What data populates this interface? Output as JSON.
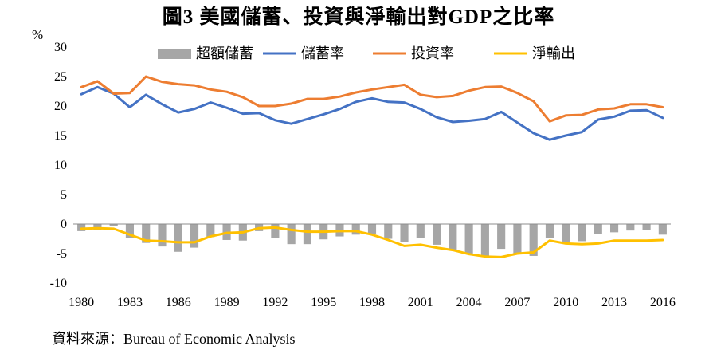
{
  "title": "圖3  美國儲蓄、投資與淨輸出對GDP之比率",
  "unit": "%",
  "source": "資料來源：Bureau of Economic Analysis",
  "chart_data": {
    "type": "bar",
    "title": "圖3  美國儲蓄、投資與淨輸出對GDP之比率",
    "ylabel": "%",
    "ylim": [
      -10,
      30
    ],
    "yticks": [
      30,
      25,
      20,
      15,
      10,
      5,
      0,
      -5,
      -10
    ],
    "xticks": [
      "1980",
      "1983",
      "1986",
      "1989",
      "1992",
      "1995",
      "1998",
      "2001",
      "2004",
      "2007",
      "2010",
      "2013",
      "2016"
    ],
    "x": [
      1980,
      1981,
      1982,
      1983,
      1984,
      1985,
      1986,
      1987,
      1988,
      1989,
      1990,
      1991,
      1992,
      1993,
      1994,
      1995,
      1996,
      1997,
      1998,
      1999,
      2000,
      2001,
      2002,
      2003,
      2004,
      2005,
      2006,
      2007,
      2008,
      2009,
      2010,
      2011,
      2012,
      2013,
      2014,
      2015,
      2016
    ],
    "legend_position": "top",
    "grid": false,
    "series": [
      {
        "name": "超額儲蓄",
        "kind": "bar",
        "color": "#a6a6a6",
        "values": [
          -1.2,
          -1.0,
          -0.3,
          -2.4,
          -3.2,
          -3.8,
          -4.7,
          -4.0,
          -2.2,
          -2.7,
          -2.8,
          -1.2,
          -2.4,
          -3.4,
          -3.4,
          -2.6,
          -2.1,
          -1.8,
          -1.7,
          -2.5,
          -3.0,
          -2.4,
          -3.5,
          -4.4,
          -5.1,
          -5.4,
          -4.2,
          -5.0,
          -5.4,
          -2.3,
          -3.3,
          -2.9,
          -1.7,
          -1.4,
          -1.1,
          -1.0,
          -1.8
        ]
      },
      {
        "name": "儲蓄率",
        "kind": "line",
        "color": "#4472c4",
        "values": [
          22.0,
          23.2,
          22.1,
          19.8,
          21.9,
          20.3,
          18.9,
          19.5,
          20.6,
          19.7,
          18.7,
          18.8,
          17.6,
          17.0,
          17.8,
          18.6,
          19.5,
          20.7,
          21.3,
          20.7,
          20.6,
          19.5,
          18.1,
          17.3,
          17.5,
          17.8,
          19.0,
          17.2,
          15.4,
          14.3,
          15.0,
          15.6,
          17.7,
          18.2,
          19.2,
          19.3,
          18.0
        ]
      },
      {
        "name": "投資率",
        "kind": "line",
        "color": "#ed7d31",
        "values": [
          23.2,
          24.2,
          22.1,
          22.2,
          25.0,
          24.1,
          23.7,
          23.5,
          22.8,
          22.4,
          21.5,
          20.0,
          20.0,
          20.4,
          21.2,
          21.2,
          21.6,
          22.3,
          22.8,
          23.2,
          23.6,
          21.9,
          21.5,
          21.7,
          22.6,
          23.2,
          23.3,
          22.2,
          20.8,
          17.4,
          18.4,
          18.5,
          19.4,
          19.6,
          20.3,
          20.3,
          19.8
        ]
      },
      {
        "name": "淨輸出",
        "kind": "line",
        "color": "#ffc000",
        "values": [
          -0.8,
          -0.7,
          -0.8,
          -1.8,
          -2.8,
          -2.9,
          -3.1,
          -3.1,
          -2.1,
          -1.5,
          -1.4,
          -0.7,
          -0.6,
          -1.0,
          -1.3,
          -1.3,
          -1.2,
          -1.2,
          -1.8,
          -2.7,
          -3.7,
          -3.5,
          -4.0,
          -4.4,
          -5.1,
          -5.5,
          -5.6,
          -5.0,
          -4.8,
          -2.8,
          -3.3,
          -3.4,
          -3.3,
          -2.8,
          -2.8,
          -2.8,
          -2.7
        ]
      }
    ]
  }
}
